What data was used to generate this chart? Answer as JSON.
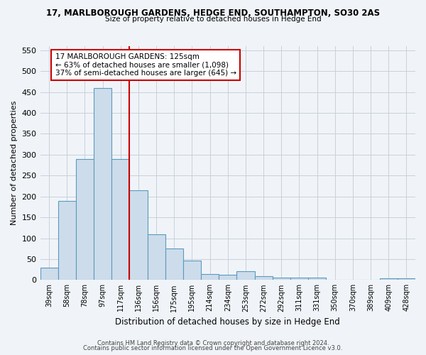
{
  "title1": "17, MARLBOROUGH GARDENS, HEDGE END, SOUTHAMPTON, SO30 2AS",
  "title2": "Size of property relative to detached houses in Hedge End",
  "xlabel": "Distribution of detached houses by size in Hedge End",
  "ylabel": "Number of detached properties",
  "footer1": "Contains HM Land Registry data © Crown copyright and database right 2024.",
  "footer2": "Contains public sector information licensed under the Open Government Licence v3.0.",
  "categories": [
    "39sqm",
    "58sqm",
    "78sqm",
    "97sqm",
    "117sqm",
    "136sqm",
    "156sqm",
    "175sqm",
    "195sqm",
    "214sqm",
    "234sqm",
    "253sqm",
    "272sqm",
    "292sqm",
    "311sqm",
    "331sqm",
    "350sqm",
    "370sqm",
    "389sqm",
    "409sqm",
    "428sqm"
  ],
  "values": [
    30,
    190,
    290,
    460,
    290,
    215,
    110,
    75,
    47,
    14,
    13,
    21,
    9,
    6,
    5,
    5,
    0,
    0,
    0,
    4,
    4
  ],
  "bar_color": "#cddceb",
  "bar_edge_color": "#5b9abf",
  "vline_x_index": 4.5,
  "vline_color": "#cc0000",
  "annotation_text": "17 MARLBOROUGH GARDENS: 125sqm\n← 63% of detached houses are smaller (1,098)\n37% of semi-detached houses are larger (645) →",
  "annotation_box_color": "#ffffff",
  "annotation_box_edge": "#cc0000",
  "ylim": [
    0,
    560
  ],
  "yticks": [
    0,
    50,
    100,
    150,
    200,
    250,
    300,
    350,
    400,
    450,
    500,
    550
  ],
  "background_color": "#f0f4f8",
  "grid_color": "#c8d0da"
}
